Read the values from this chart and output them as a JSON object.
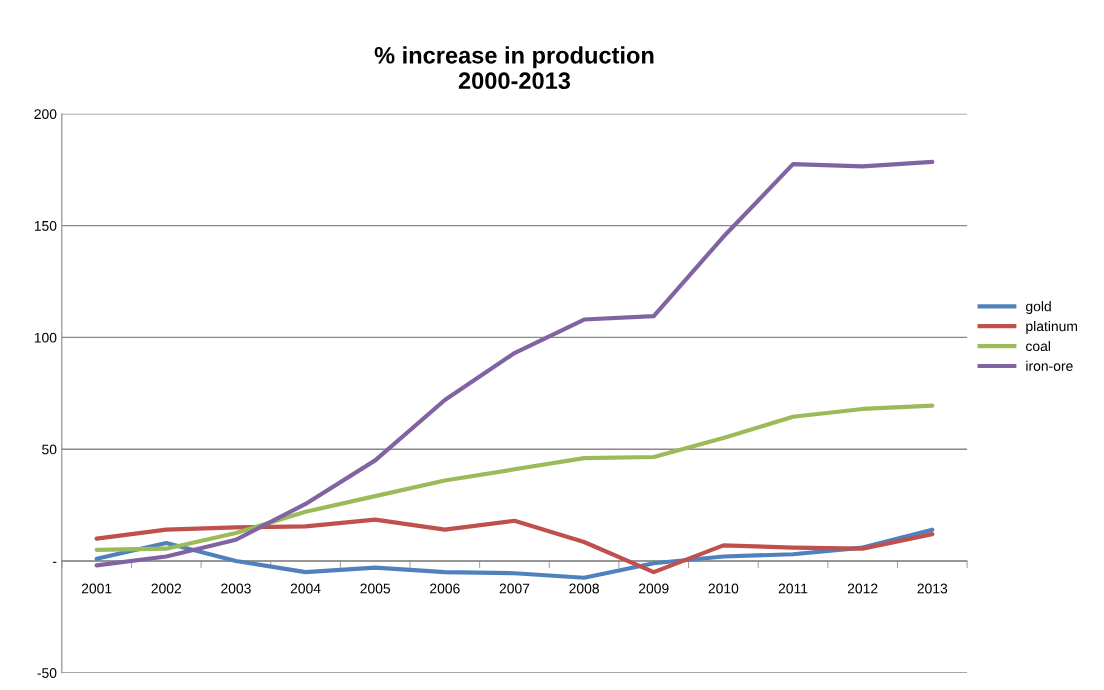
{
  "chart_data": {
    "type": "line",
    "title": "% increase in production\n2000-2013",
    "categories": [
      "2001",
      "2002",
      "2003",
      "2004",
      "2005",
      "2006",
      "2007",
      "2008",
      "2009",
      "2010",
      "2011",
      "2012",
      "2013"
    ],
    "series": [
      {
        "name": "gold",
        "color": "#4f81bd",
        "values": [
          1,
          8,
          0,
          -5,
          -3,
          -5,
          -5.5,
          -7.5,
          -1,
          2,
          3,
          6,
          14
        ]
      },
      {
        "name": "platinum",
        "color": "#c0504d",
        "values": [
          10,
          14,
          15,
          15.5,
          18.5,
          14,
          18,
          8.5,
          -5,
          7,
          6,
          5.5,
          12
        ]
      },
      {
        "name": "coal",
        "color": "#9bbb59",
        "values": [
          5,
          5.5,
          12.5,
          22,
          29,
          36,
          41,
          46,
          46.5,
          55,
          64.5,
          68,
          69.5
        ]
      },
      {
        "name": "iron-ore",
        "color": "#8064a2",
        "values": [
          -2,
          2,
          9.5,
          25.5,
          45,
          72,
          93,
          108,
          109.5,
          145,
          177.5,
          176.5,
          178.5
        ]
      }
    ],
    "ylim": [
      -50,
      200
    ],
    "yticks": [
      -50,
      {
        "value": 0,
        "label": "-"
      },
      50,
      100,
      150,
      200
    ],
    "grid": "y",
    "legend": "right"
  }
}
